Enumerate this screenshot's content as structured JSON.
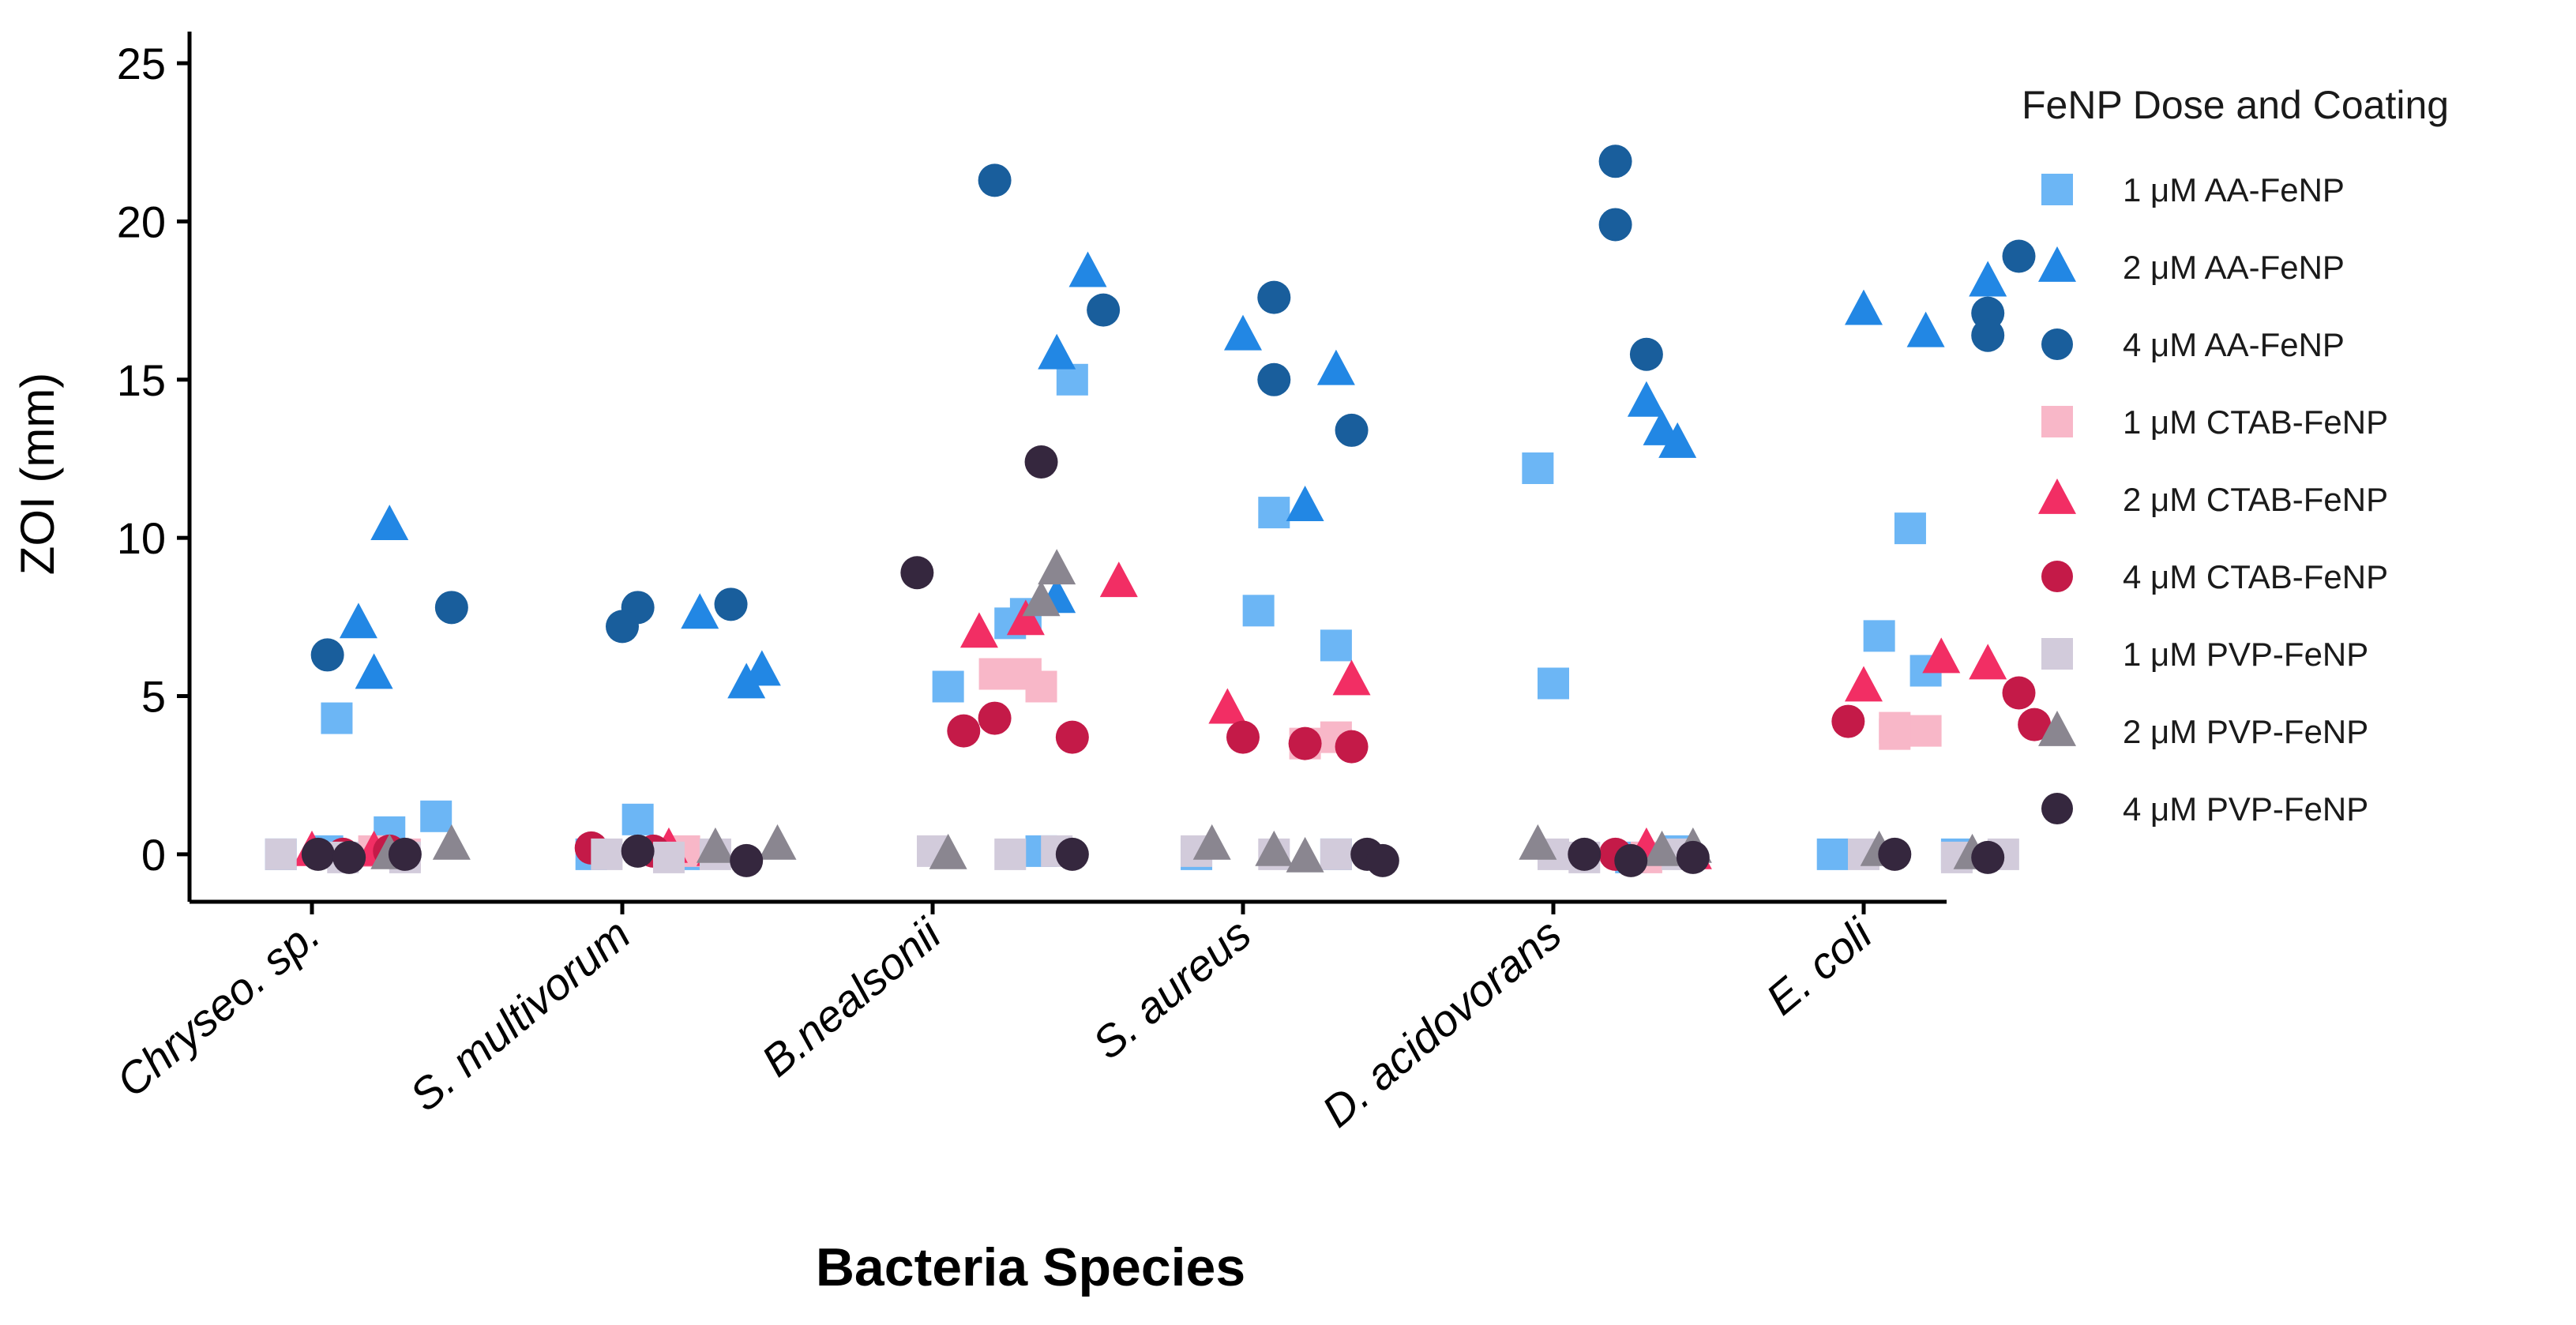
{
  "chart_data": {
    "type": "scatter",
    "title": "",
    "xlabel": "Bacteria Species",
    "ylabel": "ZOI (mm)",
    "ylim": [
      -1.5,
      26
    ],
    "yticks": [
      0,
      5,
      10,
      15,
      20,
      25
    ],
    "categories": [
      "Chryseo. sp.",
      "S. multivorum",
      "B.nealsonii",
      "S. aureus",
      "D. acidovorans",
      "E. coli"
    ],
    "grid": false,
    "legend": {
      "title": "FeNP Dose and Coating",
      "position": "right"
    },
    "series": [
      {
        "name": "1 μM AA-FeNP",
        "shape": "square",
        "color": "#6cb6f5",
        "points": [
          [
            0.08,
            4.3
          ],
          [
            0.25,
            0.7
          ],
          [
            0.4,
            1.2
          ],
          [
            -0.1,
            0
          ],
          [
            0.05,
            0.1
          ],
          [
            1.05,
            1.1
          ],
          [
            0.9,
            0
          ],
          [
            1.2,
            0
          ],
          [
            2.05,
            5.3
          ],
          [
            2.25,
            7.3
          ],
          [
            2.3,
            7.6
          ],
          [
            2.45,
            15.0
          ],
          [
            2.35,
            0.1
          ],
          [
            3.05,
            7.7
          ],
          [
            3.1,
            10.8
          ],
          [
            3.3,
            6.6
          ],
          [
            2.85,
            0
          ],
          [
            3.3,
            0
          ],
          [
            3.95,
            12.2
          ],
          [
            4.0,
            5.4
          ],
          [
            4.25,
            -0.1
          ],
          [
            4.4,
            0.1
          ],
          [
            5.05,
            6.9
          ],
          [
            5.15,
            10.3
          ],
          [
            5.2,
            5.8
          ],
          [
            4.9,
            0
          ],
          [
            5.3,
            0
          ]
        ]
      },
      {
        "name": "2 μM AA-FeNP",
        "shape": "triangle",
        "color": "#2287e4",
        "points": [
          [
            0.25,
            10.4
          ],
          [
            0.15,
            7.3
          ],
          [
            0.2,
            5.7
          ],
          [
            1.25,
            7.6
          ],
          [
            1.4,
            5.4
          ],
          [
            1.45,
            5.8
          ],
          [
            2.5,
            18.4
          ],
          [
            2.4,
            15.8
          ],
          [
            2.4,
            8.1
          ],
          [
            3.0,
            16.4
          ],
          [
            3.3,
            15.3
          ],
          [
            3.2,
            11.0
          ],
          [
            4.3,
            14.3
          ],
          [
            4.35,
            13.4
          ],
          [
            4.4,
            13.0
          ],
          [
            5.0,
            17.2
          ],
          [
            5.2,
            16.5
          ],
          [
            5.4,
            18.1
          ]
        ]
      },
      {
        "name": "4 μM AA-FeNP",
        "shape": "circle",
        "color": "#195e9c",
        "points": [
          [
            0.05,
            6.3
          ],
          [
            0.45,
            7.8
          ],
          [
            1.05,
            7.8
          ],
          [
            1.0,
            7.2
          ],
          [
            1.35,
            7.9
          ],
          [
            2.2,
            21.3
          ],
          [
            2.55,
            17.2
          ],
          [
            3.1,
            17.6
          ],
          [
            3.1,
            15.0
          ],
          [
            3.35,
            13.4
          ],
          [
            4.2,
            21.9
          ],
          [
            4.2,
            19.9
          ],
          [
            4.3,
            15.8
          ],
          [
            5.5,
            18.9
          ],
          [
            5.4,
            17.1
          ],
          [
            5.4,
            16.4
          ]
        ]
      },
      {
        "name": "1 μM CTAB-FeNP",
        "shape": "square",
        "color": "#f8b7c8",
        "points": [
          [
            0.3,
            0
          ],
          [
            0.2,
            0.1
          ],
          [
            1.2,
            0.1
          ],
          [
            2.2,
            5.7
          ],
          [
            2.3,
            5.7
          ],
          [
            2.35,
            5.3
          ],
          [
            3.2,
            3.5
          ],
          [
            3.3,
            3.7
          ],
          [
            4.3,
            -0.1
          ],
          [
            5.1,
            3.8
          ],
          [
            5.2,
            3.9
          ],
          [
            5.1,
            4.0
          ]
        ]
      },
      {
        "name": "2 μM CTAB-FeNP",
        "shape": "triangle",
        "color": "#f22e64",
        "points": [
          [
            0.0,
            0.1
          ],
          [
            0.2,
            0.1
          ],
          [
            1.15,
            0.2
          ],
          [
            1.3,
            0.1
          ],
          [
            2.15,
            7.0
          ],
          [
            2.3,
            7.4
          ],
          [
            2.6,
            8.6
          ],
          [
            2.95,
            4.6
          ],
          [
            3.35,
            5.5
          ],
          [
            4.3,
            0.2
          ],
          [
            4.45,
            0
          ],
          [
            5.0,
            5.3
          ],
          [
            5.25,
            6.2
          ],
          [
            5.4,
            6.0
          ]
        ]
      },
      {
        "name": "4 μM CTAB-FeNP",
        "shape": "circle",
        "color": "#c41a48",
        "points": [
          [
            0.1,
            0
          ],
          [
            0.25,
            0.1
          ],
          [
            0.9,
            0.2
          ],
          [
            1.1,
            0.1
          ],
          [
            2.1,
            3.9
          ],
          [
            2.2,
            4.3
          ],
          [
            2.45,
            3.7
          ],
          [
            3.0,
            3.7
          ],
          [
            3.2,
            3.5
          ],
          [
            3.35,
            3.4
          ],
          [
            4.2,
            0
          ],
          [
            4.95,
            4.2
          ],
          [
            5.5,
            5.1
          ],
          [
            5.55,
            4.1
          ]
        ]
      },
      {
        "name": "1 μM PVP-FeNP",
        "shape": "square",
        "color": "#d2cbdb",
        "points": [
          [
            -0.1,
            0
          ],
          [
            0.1,
            -0.1
          ],
          [
            0.3,
            -0.1
          ],
          [
            0.95,
            0
          ],
          [
            1.15,
            -0.1
          ],
          [
            1.3,
            0
          ],
          [
            2.0,
            0.1
          ],
          [
            2.25,
            0
          ],
          [
            2.4,
            0.1
          ],
          [
            2.85,
            0.1
          ],
          [
            3.1,
            0
          ],
          [
            3.3,
            0
          ],
          [
            4.0,
            0
          ],
          [
            4.1,
            -0.1
          ],
          [
            4.4,
            0
          ],
          [
            5.0,
            0
          ],
          [
            5.3,
            -0.1
          ],
          [
            5.45,
            0
          ]
        ]
      },
      {
        "name": "2 μM PVP-FeNP",
        "shape": "triangle",
        "color": "#8a8690",
        "points": [
          [
            0.45,
            0.3
          ],
          [
            0.25,
            0
          ],
          [
            1.3,
            0.2
          ],
          [
            1.5,
            0.3
          ],
          [
            2.05,
            0
          ],
          [
            2.35,
            8.0
          ],
          [
            2.4,
            9.0
          ],
          [
            2.9,
            0.3
          ],
          [
            3.1,
            0.1
          ],
          [
            3.2,
            -0.1
          ],
          [
            3.95,
            0.3
          ],
          [
            4.35,
            0.1
          ],
          [
            4.45,
            0.2
          ],
          [
            5.05,
            0.1
          ],
          [
            5.35,
            0
          ]
        ]
      },
      {
        "name": "4 μM PVP-FeNP",
        "shape": "circle",
        "color": "#35273e",
        "points": [
          [
            0.02,
            0
          ],
          [
            0.12,
            -0.1
          ],
          [
            0.3,
            0
          ],
          [
            1.05,
            0.1
          ],
          [
            1.4,
            -0.2
          ],
          [
            1.95,
            8.9
          ],
          [
            2.35,
            12.4
          ],
          [
            2.45,
            0
          ],
          [
            3.4,
            0
          ],
          [
            3.45,
            -0.2
          ],
          [
            4.1,
            0
          ],
          [
            4.25,
            -0.2
          ],
          [
            4.45,
            -0.1
          ],
          [
            5.1,
            0
          ],
          [
            5.4,
            -0.1
          ]
        ]
      }
    ]
  }
}
